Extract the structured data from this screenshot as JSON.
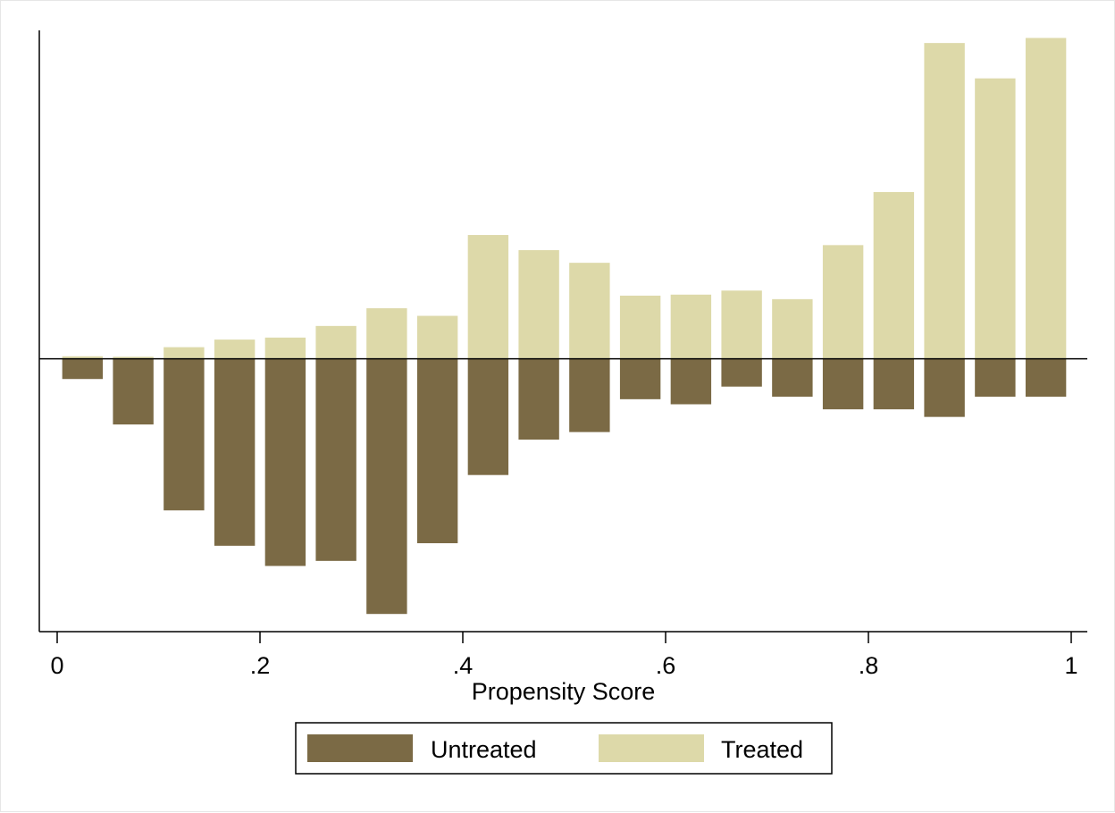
{
  "chart_data": {
    "type": "bar",
    "xlabel": "Propensity Score",
    "ylabel": "",
    "xlim": [
      -0.03,
      1.02
    ],
    "ylim": [
      -0.54,
      0.65
    ],
    "y_axis_ticks_shown": false,
    "grid": false,
    "legend_position": "bottom",
    "bin_width": 0.05,
    "x_ticks": [
      {
        "value": 0,
        "label": "0"
      },
      {
        "value": 0.2,
        "label": ".2"
      },
      {
        "value": 0.4,
        "label": ".4"
      },
      {
        "value": 0.6,
        "label": ".6"
      },
      {
        "value": 0.8,
        "label": ".8"
      },
      {
        "value": 1,
        "label": "1"
      }
    ],
    "bin_centers": [
      0.025,
      0.075,
      0.125,
      0.175,
      0.225,
      0.275,
      0.325,
      0.375,
      0.425,
      0.475,
      0.525,
      0.575,
      0.625,
      0.675,
      0.725,
      0.775,
      0.825,
      0.875,
      0.925,
      0.975
    ],
    "series": [
      {
        "name": "Untreated",
        "color": "#7b6a45",
        "direction": "below",
        "values": [
          0.04,
          0.13,
          0.3,
          0.37,
          0.41,
          0.4,
          0.505,
          0.365,
          0.23,
          0.16,
          0.145,
          0.08,
          0.09,
          0.055,
          0.075,
          0.1,
          0.1,
          0.115,
          0.075,
          0.075
        ]
      },
      {
        "name": "Treated",
        "color": "#ddd9a9",
        "direction": "above",
        "values": [
          0.005,
          0.004,
          0.023,
          0.038,
          0.042,
          0.065,
          0.1,
          0.085,
          0.245,
          0.215,
          0.19,
          0.125,
          0.127,
          0.135,
          0.118,
          0.225,
          0.33,
          0.625,
          0.555,
          0.635
        ]
      }
    ],
    "legend": {
      "entries": [
        {
          "label": "Untreated",
          "color": "#7b6a45"
        },
        {
          "label": "Treated",
          "color": "#ddd9a9"
        }
      ]
    }
  }
}
